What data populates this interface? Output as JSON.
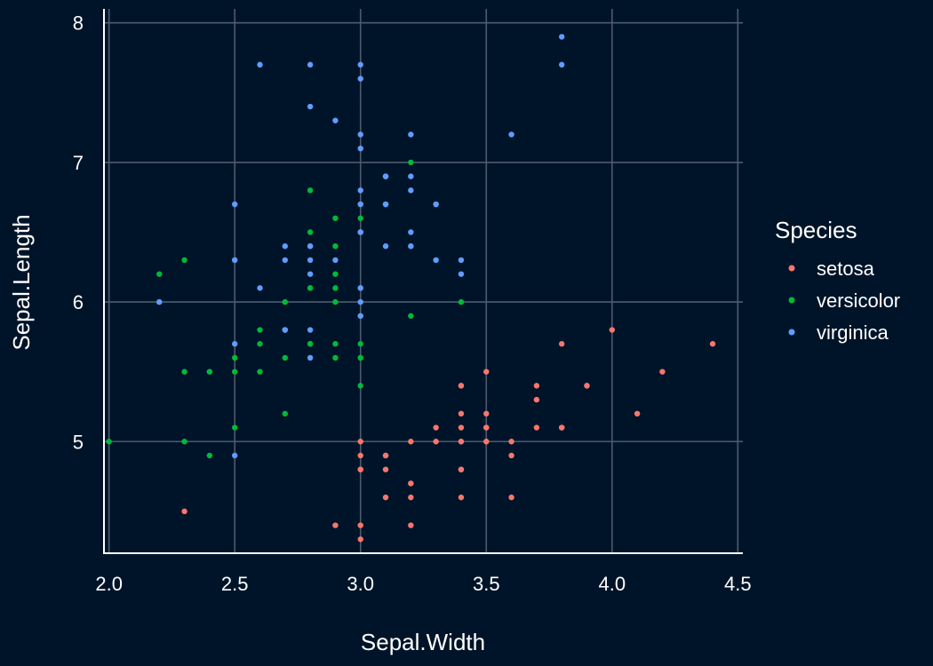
{
  "chart_data": {
    "type": "scatter",
    "title": "",
    "xlabel": "Sepal.Width",
    "ylabel": "Sepal.Length",
    "xlim": [
      1.98,
      4.52
    ],
    "ylim": [
      4.2,
      8.1
    ],
    "x_ticks": [
      2.0,
      2.5,
      3.0,
      3.5,
      4.0,
      4.5
    ],
    "x_tick_labels": [
      "2.0",
      "2.5",
      "3.0",
      "3.5",
      "4.0",
      "4.5"
    ],
    "y_ticks": [
      5,
      6,
      7,
      8
    ],
    "y_tick_labels": [
      "5",
      "6",
      "7",
      "8"
    ],
    "grid": true,
    "legend": {
      "title": "Species",
      "position": "right"
    },
    "series": [
      {
        "name": "setosa",
        "color": "#f8766d",
        "points": [
          [
            3.5,
            5.1
          ],
          [
            3.0,
            4.9
          ],
          [
            3.2,
            4.7
          ],
          [
            3.1,
            4.6
          ],
          [
            3.6,
            5.0
          ],
          [
            3.9,
            5.4
          ],
          [
            3.4,
            4.6
          ],
          [
            3.4,
            5.0
          ],
          [
            2.9,
            4.4
          ],
          [
            3.1,
            4.9
          ],
          [
            3.7,
            5.4
          ],
          [
            3.4,
            4.8
          ],
          [
            3.0,
            4.8
          ],
          [
            3.0,
            4.3
          ],
          [
            4.0,
            5.8
          ],
          [
            4.4,
            5.7
          ],
          [
            3.9,
            5.4
          ],
          [
            3.5,
            5.1
          ],
          [
            3.8,
            5.7
          ],
          [
            3.8,
            5.1
          ],
          [
            3.4,
            5.4
          ],
          [
            3.7,
            5.1
          ],
          [
            3.6,
            4.6
          ],
          [
            3.3,
            5.1
          ],
          [
            3.4,
            4.8
          ],
          [
            3.0,
            5.0
          ],
          [
            3.4,
            5.0
          ],
          [
            3.5,
            5.2
          ],
          [
            3.4,
            5.2
          ],
          [
            3.2,
            4.7
          ],
          [
            3.1,
            4.8
          ],
          [
            3.4,
            5.4
          ],
          [
            4.1,
            5.2
          ],
          [
            4.2,
            5.5
          ],
          [
            3.1,
            4.9
          ],
          [
            3.2,
            5.0
          ],
          [
            3.5,
            5.5
          ],
          [
            3.6,
            4.9
          ],
          [
            3.0,
            4.4
          ],
          [
            3.4,
            5.1
          ],
          [
            3.5,
            5.0
          ],
          [
            2.3,
            4.5
          ],
          [
            3.2,
            4.4
          ],
          [
            3.5,
            5.0
          ],
          [
            3.8,
            5.1
          ],
          [
            3.0,
            4.8
          ],
          [
            3.8,
            5.1
          ],
          [
            3.2,
            4.6
          ],
          [
            3.7,
            5.3
          ],
          [
            3.3,
            5.0
          ]
        ]
      },
      {
        "name": "versicolor",
        "color": "#00ba38",
        "points": [
          [
            3.2,
            7.0
          ],
          [
            3.2,
            6.4
          ],
          [
            3.1,
            6.9
          ],
          [
            2.3,
            5.5
          ],
          [
            2.8,
            6.5
          ],
          [
            2.8,
            5.7
          ],
          [
            3.3,
            6.3
          ],
          [
            2.4,
            4.9
          ],
          [
            2.9,
            6.6
          ],
          [
            2.7,
            5.2
          ],
          [
            2.0,
            5.0
          ],
          [
            3.0,
            5.9
          ],
          [
            2.2,
            6.0
          ],
          [
            2.9,
            6.1
          ],
          [
            2.9,
            5.6
          ],
          [
            3.1,
            6.7
          ],
          [
            3.0,
            5.6
          ],
          [
            2.7,
            5.8
          ],
          [
            2.2,
            6.2
          ],
          [
            2.5,
            5.6
          ],
          [
            3.2,
            5.9
          ],
          [
            2.8,
            6.1
          ],
          [
            2.5,
            6.3
          ],
          [
            2.8,
            6.1
          ],
          [
            2.9,
            6.4
          ],
          [
            3.0,
            6.6
          ],
          [
            2.8,
            6.8
          ],
          [
            3.0,
            6.7
          ],
          [
            2.9,
            6.0
          ],
          [
            2.6,
            5.7
          ],
          [
            2.4,
            5.5
          ],
          [
            2.4,
            5.5
          ],
          [
            2.7,
            5.8
          ],
          [
            2.7,
            6.0
          ],
          [
            3.0,
            5.4
          ],
          [
            3.4,
            6.0
          ],
          [
            3.1,
            6.7
          ],
          [
            2.3,
            6.3
          ],
          [
            3.0,
            5.6
          ],
          [
            2.5,
            5.5
          ],
          [
            2.6,
            5.5
          ],
          [
            3.0,
            6.1
          ],
          [
            2.6,
            5.8
          ],
          [
            2.3,
            5.0
          ],
          [
            2.7,
            5.6
          ],
          [
            3.0,
            5.7
          ],
          [
            2.9,
            5.7
          ],
          [
            2.9,
            6.2
          ],
          [
            2.5,
            5.1
          ],
          [
            2.8,
            5.7
          ]
        ]
      },
      {
        "name": "virginica",
        "color": "#619cff",
        "points": [
          [
            3.3,
            6.3
          ],
          [
            2.7,
            5.8
          ],
          [
            3.0,
            7.1
          ],
          [
            2.9,
            6.3
          ],
          [
            3.0,
            6.5
          ],
          [
            3.0,
            7.6
          ],
          [
            2.5,
            4.9
          ],
          [
            2.9,
            7.3
          ],
          [
            2.5,
            6.7
          ],
          [
            3.6,
            7.2
          ],
          [
            3.2,
            6.5
          ],
          [
            2.7,
            6.4
          ],
          [
            3.0,
            6.8
          ],
          [
            2.5,
            5.7
          ],
          [
            2.8,
            5.8
          ],
          [
            3.2,
            6.4
          ],
          [
            3.0,
            6.5
          ],
          [
            3.8,
            7.7
          ],
          [
            2.6,
            7.7
          ],
          [
            2.2,
            6.0
          ],
          [
            3.2,
            6.9
          ],
          [
            2.8,
            5.6
          ],
          [
            2.8,
            7.7
          ],
          [
            2.7,
            6.3
          ],
          [
            3.3,
            6.7
          ],
          [
            3.2,
            7.2
          ],
          [
            2.8,
            6.2
          ],
          [
            3.0,
            6.1
          ],
          [
            2.8,
            6.4
          ],
          [
            3.0,
            7.2
          ],
          [
            2.8,
            7.4
          ],
          [
            3.8,
            7.9
          ],
          [
            2.8,
            6.4
          ],
          [
            2.8,
            6.3
          ],
          [
            2.6,
            6.1
          ],
          [
            3.0,
            7.7
          ],
          [
            3.4,
            6.3
          ],
          [
            3.1,
            6.4
          ],
          [
            3.0,
            6.0
          ],
          [
            3.1,
            6.9
          ],
          [
            3.1,
            6.7
          ],
          [
            3.1,
            6.9
          ],
          [
            2.7,
            5.8
          ],
          [
            3.2,
            6.8
          ],
          [
            3.3,
            6.7
          ],
          [
            3.0,
            6.7
          ],
          [
            2.5,
            6.3
          ],
          [
            3.0,
            6.5
          ],
          [
            3.4,
            6.2
          ],
          [
            3.0,
            5.9
          ]
        ]
      }
    ]
  }
}
